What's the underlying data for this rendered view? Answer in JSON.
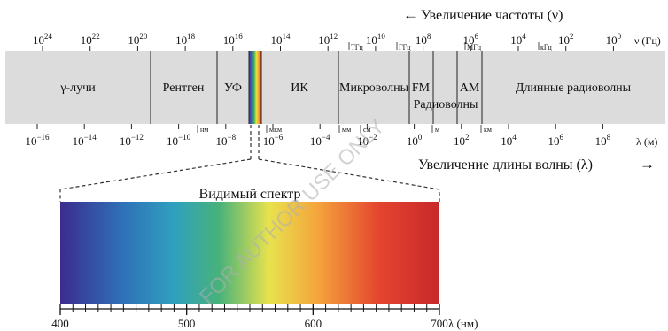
{
  "header": {
    "freq_arrow": "←",
    "freq_label": "Увеличение частоты (ν)",
    "wave_label": "Увеличение длины волны (λ)",
    "wave_arrow": "→"
  },
  "freq_axis": {
    "unit": "ν (Гц)",
    "ticks": [
      {
        "base": "10",
        "exp": "24"
      },
      {
        "base": "10",
        "exp": "22"
      },
      {
        "base": "10",
        "exp": "20"
      },
      {
        "base": "10",
        "exp": "18"
      },
      {
        "base": "10",
        "exp": "16"
      },
      {
        "base": "10",
        "exp": "14"
      },
      {
        "base": "10",
        "exp": "12"
      },
      {
        "base": "10",
        "exp": "10"
      },
      {
        "base": "10",
        "exp": "8"
      },
      {
        "base": "10",
        "exp": "6"
      },
      {
        "base": "10",
        "exp": "4"
      },
      {
        "base": "10",
        "exp": "2"
      },
      {
        "base": "10",
        "exp": "0"
      }
    ],
    "unit_marks": [
      "ТГц",
      "ГГц",
      "МГц",
      "кГц"
    ]
  },
  "wave_axis": {
    "unit": "λ (м)",
    "ticks": [
      {
        "base": "10",
        "exp": "−16"
      },
      {
        "base": "10",
        "exp": "−14"
      },
      {
        "base": "10",
        "exp": "−12"
      },
      {
        "base": "10",
        "exp": "−10"
      },
      {
        "base": "10",
        "exp": "−8"
      },
      {
        "base": "10",
        "exp": "−6"
      },
      {
        "base": "10",
        "exp": "−4"
      },
      {
        "base": "10",
        "exp": "−2"
      },
      {
        "base": "10",
        "exp": "0"
      },
      {
        "base": "10",
        "exp": "2"
      },
      {
        "base": "10",
        "exp": "4"
      },
      {
        "base": "10",
        "exp": "6"
      },
      {
        "base": "10",
        "exp": "8"
      }
    ],
    "unit_marks": [
      "нм",
      "мкм",
      "мм",
      "см",
      "м",
      "км"
    ]
  },
  "bands": {
    "gamma": "γ-лучи",
    "xray": "Рентген",
    "uv": "УФ",
    "ir": "ИК",
    "microwave": "Микроволны",
    "fm": "FM",
    "am": "AM",
    "radio": "Радиоволны",
    "longwave": "Длинные радиоволны"
  },
  "visible": {
    "title": "Видимый спектр",
    "unit": "λ (нм)",
    "ticks": [
      "400",
      "500",
      "600",
      "700"
    ],
    "range_nm": [
      400,
      700
    ],
    "colors": [
      "#3b2c8f",
      "#2f6fb7",
      "#2fa0bf",
      "#49b27a",
      "#e8e24e",
      "#f4a43c",
      "#e4452f",
      "#c8282a"
    ]
  },
  "watermark": "FOR AUTHOR USE ONLY"
}
